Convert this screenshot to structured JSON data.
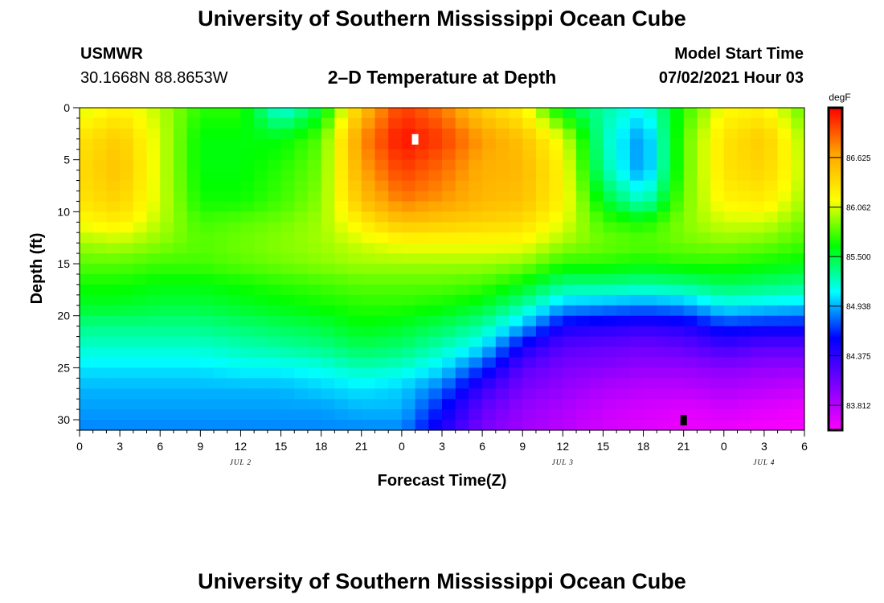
{
  "page": {
    "title_top": "University of Southern Mississippi Ocean Cube",
    "title_bottom": "University of Southern Mississippi Ocean Cube",
    "station": "USMWR",
    "coords": "30.1668N  88.8653W",
    "subtitle": "2–D Temperature at Depth",
    "model_label": "Model Start Time",
    "model_time": "07/02/2021 Hour 03"
  },
  "chart_data": {
    "type": "heatmap",
    "xlabel": "Forecast Time(Z)",
    "ylabel": "Depth (ft)",
    "x_hours_range": [
      0,
      54
    ],
    "y_depth_range": [
      0,
      31
    ],
    "x_ticks": [
      {
        "hour": 0,
        "label": "0"
      },
      {
        "hour": 3,
        "label": "3"
      },
      {
        "hour": 6,
        "label": "6"
      },
      {
        "hour": 9,
        "label": "9"
      },
      {
        "hour": 12,
        "label": "12"
      },
      {
        "hour": 15,
        "label": "15"
      },
      {
        "hour": 18,
        "label": "18"
      },
      {
        "hour": 21,
        "label": "21"
      },
      {
        "hour": 24,
        "label": "0"
      },
      {
        "hour": 27,
        "label": "3"
      },
      {
        "hour": 30,
        "label": "6"
      },
      {
        "hour": 33,
        "label": "9"
      },
      {
        "hour": 36,
        "label": "12"
      },
      {
        "hour": 39,
        "label": "15"
      },
      {
        "hour": 42,
        "label": "18"
      },
      {
        "hour": 45,
        "label": "21"
      },
      {
        "hour": 48,
        "label": "0"
      },
      {
        "hour": 51,
        "label": "3"
      },
      {
        "hour": 54,
        "label": "6"
      }
    ],
    "y_ticks": [
      {
        "depth": 0,
        "label": "0"
      },
      {
        "depth": 5,
        "label": "5"
      },
      {
        "depth": 10,
        "label": "10"
      },
      {
        "depth": 15,
        "label": "15"
      },
      {
        "depth": 20,
        "label": "20"
      },
      {
        "depth": 25,
        "label": "25"
      },
      {
        "depth": 30,
        "label": "30"
      }
    ],
    "date_labels": [
      {
        "hour": 12,
        "label": "JUL 2"
      },
      {
        "hour": 36,
        "label": "JUL 3"
      },
      {
        "hour": 51,
        "label": "JUL 4"
      }
    ],
    "colorbar": {
      "units": "degF",
      "min": 83.53,
      "max": 87.19,
      "labels": [
        "86.625",
        "86.062",
        "85.500",
        "84.938",
        "84.375",
        "83.812"
      ],
      "label_values": [
        86.625,
        86.062,
        85.5,
        84.938,
        84.375,
        83.812
      ],
      "colors": [
        "#ff00ff",
        "#7a00ff",
        "#0000ff",
        "#00ffff",
        "#00ff00",
        "#ffff00",
        "#ffa500",
        "#ff0000"
      ]
    },
    "markers": [
      {
        "hour": 25,
        "depth": 3.0,
        "color": "#ffffff"
      },
      {
        "hour": 45,
        "depth": 30.0,
        "color": "#000000"
      }
    ],
    "samples": [
      {
        "hour": 0,
        "depths": [
          0,
          3,
          6,
          9,
          11,
          13,
          15,
          17,
          19,
          21,
          23,
          25,
          27,
          29,
          31
        ],
        "temps": [
          86.05,
          86.3,
          86.35,
          86.3,
          86.15,
          85.95,
          85.8,
          85.65,
          85.55,
          85.35,
          85.2,
          85.05,
          84.95,
          84.9,
          84.85
        ]
      },
      {
        "hour": 3,
        "depths": [
          0,
          3,
          6,
          9,
          11,
          13,
          15,
          17,
          19,
          21,
          23,
          25,
          27,
          29,
          31
        ],
        "temps": [
          86.2,
          86.45,
          86.5,
          86.4,
          86.25,
          86.0,
          85.8,
          85.65,
          85.55,
          85.35,
          85.2,
          85.05,
          84.95,
          84.9,
          84.85
        ]
      },
      {
        "hour": 6,
        "depths": [
          0,
          3,
          6,
          9,
          11,
          13,
          15,
          17,
          19,
          21,
          23,
          25,
          27,
          29,
          31
        ],
        "temps": [
          86.0,
          86.05,
          86.05,
          86.05,
          86.0,
          85.9,
          85.75,
          85.6,
          85.5,
          85.35,
          85.2,
          85.05,
          84.95,
          84.9,
          84.85
        ]
      },
      {
        "hour": 9,
        "depths": [
          0,
          3,
          6,
          9,
          11,
          13,
          15,
          17,
          19,
          21,
          23,
          25,
          27,
          29,
          31
        ],
        "temps": [
          85.7,
          85.6,
          85.6,
          85.65,
          85.75,
          85.8,
          85.75,
          85.6,
          85.5,
          85.35,
          85.2,
          85.05,
          84.95,
          84.9,
          84.85
        ]
      },
      {
        "hour": 12,
        "depths": [
          0,
          3,
          6,
          9,
          11,
          13,
          15,
          17,
          19,
          21,
          23,
          25,
          27,
          29,
          31
        ],
        "temps": [
          85.7,
          85.6,
          85.6,
          85.65,
          85.8,
          85.85,
          85.8,
          85.65,
          85.55,
          85.4,
          85.25,
          85.1,
          84.95,
          84.9,
          84.85
        ]
      },
      {
        "hour": 15,
        "depths": [
          0,
          3,
          6,
          9,
          11,
          13,
          15,
          17,
          19,
          21,
          23,
          25,
          27,
          29,
          31
        ],
        "temps": [
          85.1,
          85.6,
          85.7,
          85.75,
          85.85,
          85.9,
          85.85,
          85.7,
          85.6,
          85.45,
          85.3,
          85.1,
          84.95,
          84.9,
          84.85
        ]
      },
      {
        "hour": 18,
        "depths": [
          0,
          3,
          6,
          9,
          11,
          13,
          15,
          17,
          19,
          21,
          23,
          25,
          27,
          29,
          31
        ],
        "temps": [
          85.5,
          85.8,
          85.85,
          85.9,
          85.95,
          85.95,
          85.9,
          85.75,
          85.65,
          85.5,
          85.35,
          85.15,
          85.0,
          84.9,
          84.85
        ]
      },
      {
        "hour": 21,
        "depths": [
          0,
          3,
          6,
          9,
          11,
          13,
          15,
          17,
          19,
          21,
          23,
          25,
          27,
          29,
          31
        ],
        "temps": [
          86.5,
          86.75,
          86.65,
          86.5,
          86.25,
          86.05,
          85.95,
          85.8,
          85.7,
          85.6,
          85.45,
          85.25,
          85.05,
          84.95,
          84.85
        ]
      },
      {
        "hour": 24,
        "depths": [
          0,
          3,
          6,
          9,
          11,
          13,
          15,
          17,
          19,
          21,
          23,
          25,
          27,
          29,
          31
        ],
        "temps": [
          87.0,
          87.15,
          87.0,
          86.8,
          86.5,
          86.15,
          85.95,
          85.8,
          85.7,
          85.55,
          85.4,
          85.2,
          85.0,
          84.95,
          84.85
        ]
      },
      {
        "hour": 27,
        "depths": [
          0,
          3,
          6,
          9,
          11,
          13,
          15,
          17,
          19,
          21,
          23,
          25,
          27,
          29,
          31
        ],
        "temps": [
          86.8,
          87.0,
          86.85,
          86.7,
          86.45,
          86.15,
          85.95,
          85.8,
          85.65,
          85.45,
          85.25,
          85.05,
          84.8,
          84.6,
          84.45
        ]
      },
      {
        "hour": 30,
        "depths": [
          0,
          3,
          6,
          9,
          11,
          13,
          15,
          17,
          19,
          21,
          23,
          25,
          27,
          29,
          31
        ],
        "temps": [
          86.4,
          86.7,
          86.6,
          86.55,
          86.4,
          86.15,
          85.95,
          85.75,
          85.55,
          85.3,
          85.05,
          84.7,
          84.35,
          84.15,
          84.05
        ]
      },
      {
        "hour": 33,
        "depths": [
          0,
          3,
          6,
          9,
          11,
          13,
          15,
          17,
          19,
          21,
          23,
          25,
          27,
          29,
          31
        ],
        "temps": [
          86.2,
          86.5,
          86.55,
          86.5,
          86.35,
          86.15,
          85.9,
          85.6,
          85.3,
          84.95,
          84.5,
          84.2,
          84.05,
          83.95,
          83.9
        ]
      },
      {
        "hour": 36,
        "depths": [
          0,
          3,
          6,
          9,
          11,
          13,
          15,
          17,
          19,
          21,
          23,
          25,
          27,
          29,
          31
        ],
        "temps": [
          85.5,
          86.1,
          86.2,
          86.2,
          86.1,
          85.95,
          85.7,
          85.35,
          84.95,
          84.5,
          84.2,
          84.05,
          83.95,
          83.85,
          83.8
        ]
      },
      {
        "hour": 39,
        "depths": [
          0,
          3,
          6,
          9,
          11,
          13,
          15,
          17,
          19,
          21,
          23,
          25,
          27,
          29,
          31
        ],
        "temps": [
          85.3,
          85.25,
          85.3,
          85.55,
          85.75,
          85.85,
          85.7,
          85.35,
          84.9,
          84.45,
          84.15,
          84.0,
          83.85,
          83.75,
          83.7
        ]
      },
      {
        "hour": 42,
        "depths": [
          0,
          3,
          6,
          9,
          11,
          13,
          15,
          17,
          19,
          21,
          23,
          25,
          27,
          29,
          31
        ],
        "temps": [
          85.1,
          84.85,
          84.85,
          85.2,
          85.65,
          85.8,
          85.65,
          85.3,
          84.85,
          84.4,
          84.1,
          83.95,
          83.8,
          83.7,
          83.65
        ]
      },
      {
        "hour": 45,
        "depths": [
          0,
          3,
          6,
          9,
          11,
          13,
          15,
          17,
          19,
          21,
          23,
          25,
          27,
          29,
          31
        ],
        "temps": [
          85.7,
          85.8,
          85.8,
          85.85,
          85.9,
          85.85,
          85.7,
          85.35,
          84.9,
          84.45,
          84.15,
          83.95,
          83.8,
          83.65,
          83.6
        ]
      },
      {
        "hour": 48,
        "depths": [
          0,
          3,
          6,
          9,
          11,
          13,
          15,
          17,
          19,
          21,
          23,
          25,
          27,
          29,
          31
        ],
        "temps": [
          86.15,
          86.3,
          86.3,
          86.2,
          86.05,
          85.9,
          85.7,
          85.45,
          85.1,
          84.65,
          84.3,
          84.0,
          83.85,
          83.7,
          83.6
        ]
      },
      {
        "hour": 51,
        "depths": [
          0,
          3,
          6,
          9,
          11,
          13,
          15,
          17,
          19,
          21,
          23,
          25,
          27,
          29,
          31
        ],
        "temps": [
          86.2,
          86.45,
          86.4,
          86.25,
          86.05,
          85.85,
          85.65,
          85.4,
          85.05,
          84.6,
          84.2,
          83.95,
          83.8,
          83.65,
          83.55
        ]
      },
      {
        "hour": 54,
        "depths": [
          0,
          3,
          6,
          9,
          11,
          13,
          15,
          17,
          19,
          21,
          23,
          25,
          27,
          29,
          31
        ],
        "temps": [
          85.8,
          85.95,
          86.0,
          85.95,
          85.85,
          85.75,
          85.6,
          85.35,
          85.0,
          84.6,
          84.2,
          83.95,
          83.75,
          83.6,
          83.55
        ]
      }
    ]
  }
}
